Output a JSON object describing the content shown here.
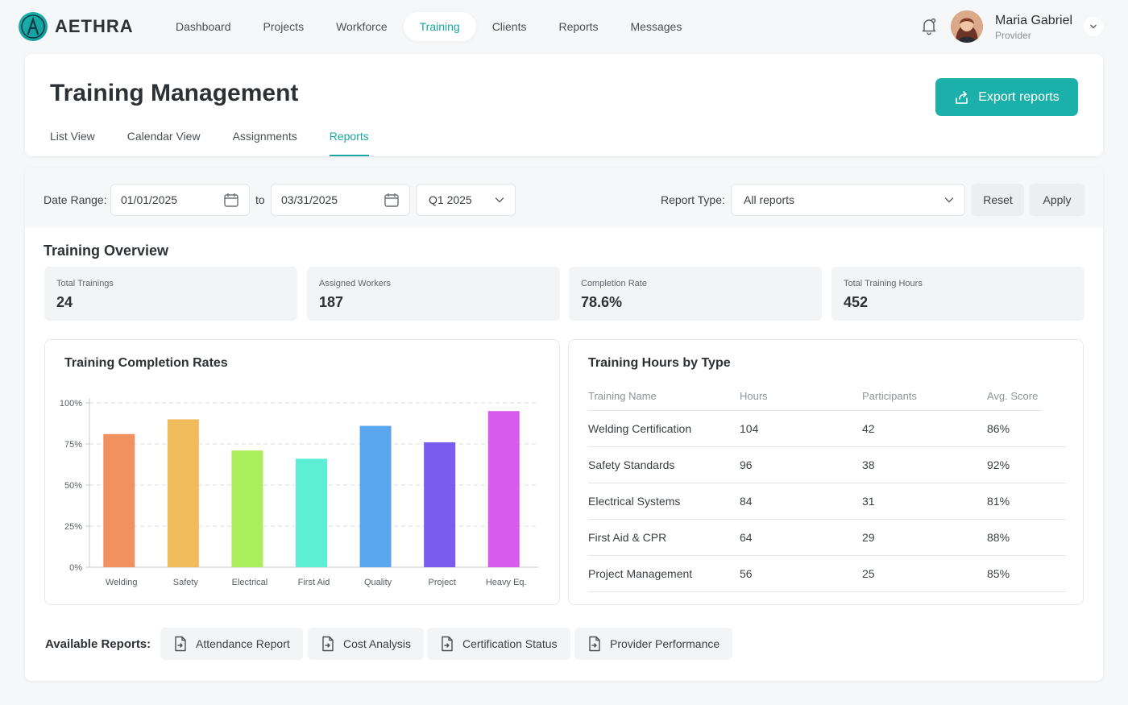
{
  "brand": {
    "name": "AETHRA",
    "accent": "#1cb0aa"
  },
  "nav": {
    "items": [
      {
        "label": "Dashboard",
        "active": false
      },
      {
        "label": "Projects",
        "active": false
      },
      {
        "label": "Workforce",
        "active": false
      },
      {
        "label": "Training",
        "active": true
      },
      {
        "label": "Clients",
        "active": false
      },
      {
        "label": "Reports",
        "active": false
      },
      {
        "label": "Messages",
        "active": false
      }
    ]
  },
  "user": {
    "name": "Maria Gabriel",
    "role": "Provider"
  },
  "header": {
    "title": "Training Management",
    "export_label": "Export reports",
    "tabs": [
      {
        "label": "List View",
        "active": false
      },
      {
        "label": "Calendar View",
        "active": false
      },
      {
        "label": "Assignments",
        "active": false
      },
      {
        "label": "Reports",
        "active": true
      }
    ]
  },
  "filters": {
    "date_range_label": "Date Range:",
    "from_date": "01/01/2025",
    "to_label": "to",
    "to_date": "03/31/2025",
    "quarter": "Q1 2025",
    "report_type_label": "Report Type:",
    "report_type": "All reports",
    "reset_label": "Reset",
    "apply_label": "Apply"
  },
  "overview": {
    "title": "Training Overview",
    "stats": [
      {
        "label": "Total Trainings",
        "value": "24"
      },
      {
        "label": "Assigned Workers",
        "value": "187"
      },
      {
        "label": "Completion Rate",
        "value": "78.6%"
      },
      {
        "label": "Total Training Hours",
        "value": "452"
      }
    ]
  },
  "chart_panel": {
    "title": "Training Completion Rates"
  },
  "chart_data": {
    "type": "bar",
    "categories": [
      "Welding",
      "Safety",
      "Electrical",
      "First Aid",
      "Quality",
      "Project",
      "Heavy Eq."
    ],
    "values": [
      81,
      90,
      71,
      66,
      86,
      76,
      95
    ],
    "colors": [
      "#f0915f",
      "#f0bb5b",
      "#aaee5c",
      "#5cefd6",
      "#5aa6ef",
      "#7a5cef",
      "#d75cee"
    ],
    "yticks": [
      "100%",
      "75%",
      "50%",
      "25%",
      "0%"
    ],
    "ylim": [
      0,
      100
    ],
    "grid": true
  },
  "table_panel": {
    "title": "Training Hours by Type",
    "columns": [
      "Training Name",
      "Hours",
      "Participants",
      "Avg. Score"
    ],
    "rows": [
      [
        "Welding Certification",
        "104",
        "42",
        "86%"
      ],
      [
        "Safety Standards",
        "96",
        "38",
        "92%"
      ],
      [
        "Electrical Systems",
        "84",
        "31",
        "81%"
      ],
      [
        "First Aid & CPR",
        "64",
        "29",
        "88%"
      ],
      [
        "Project Management",
        "56",
        "25",
        "85%"
      ]
    ]
  },
  "available_reports": {
    "label": "Available Reports:",
    "items": [
      "Attendance Report",
      "Cost Analysis",
      "Certification Status",
      "Provider Performance"
    ]
  }
}
